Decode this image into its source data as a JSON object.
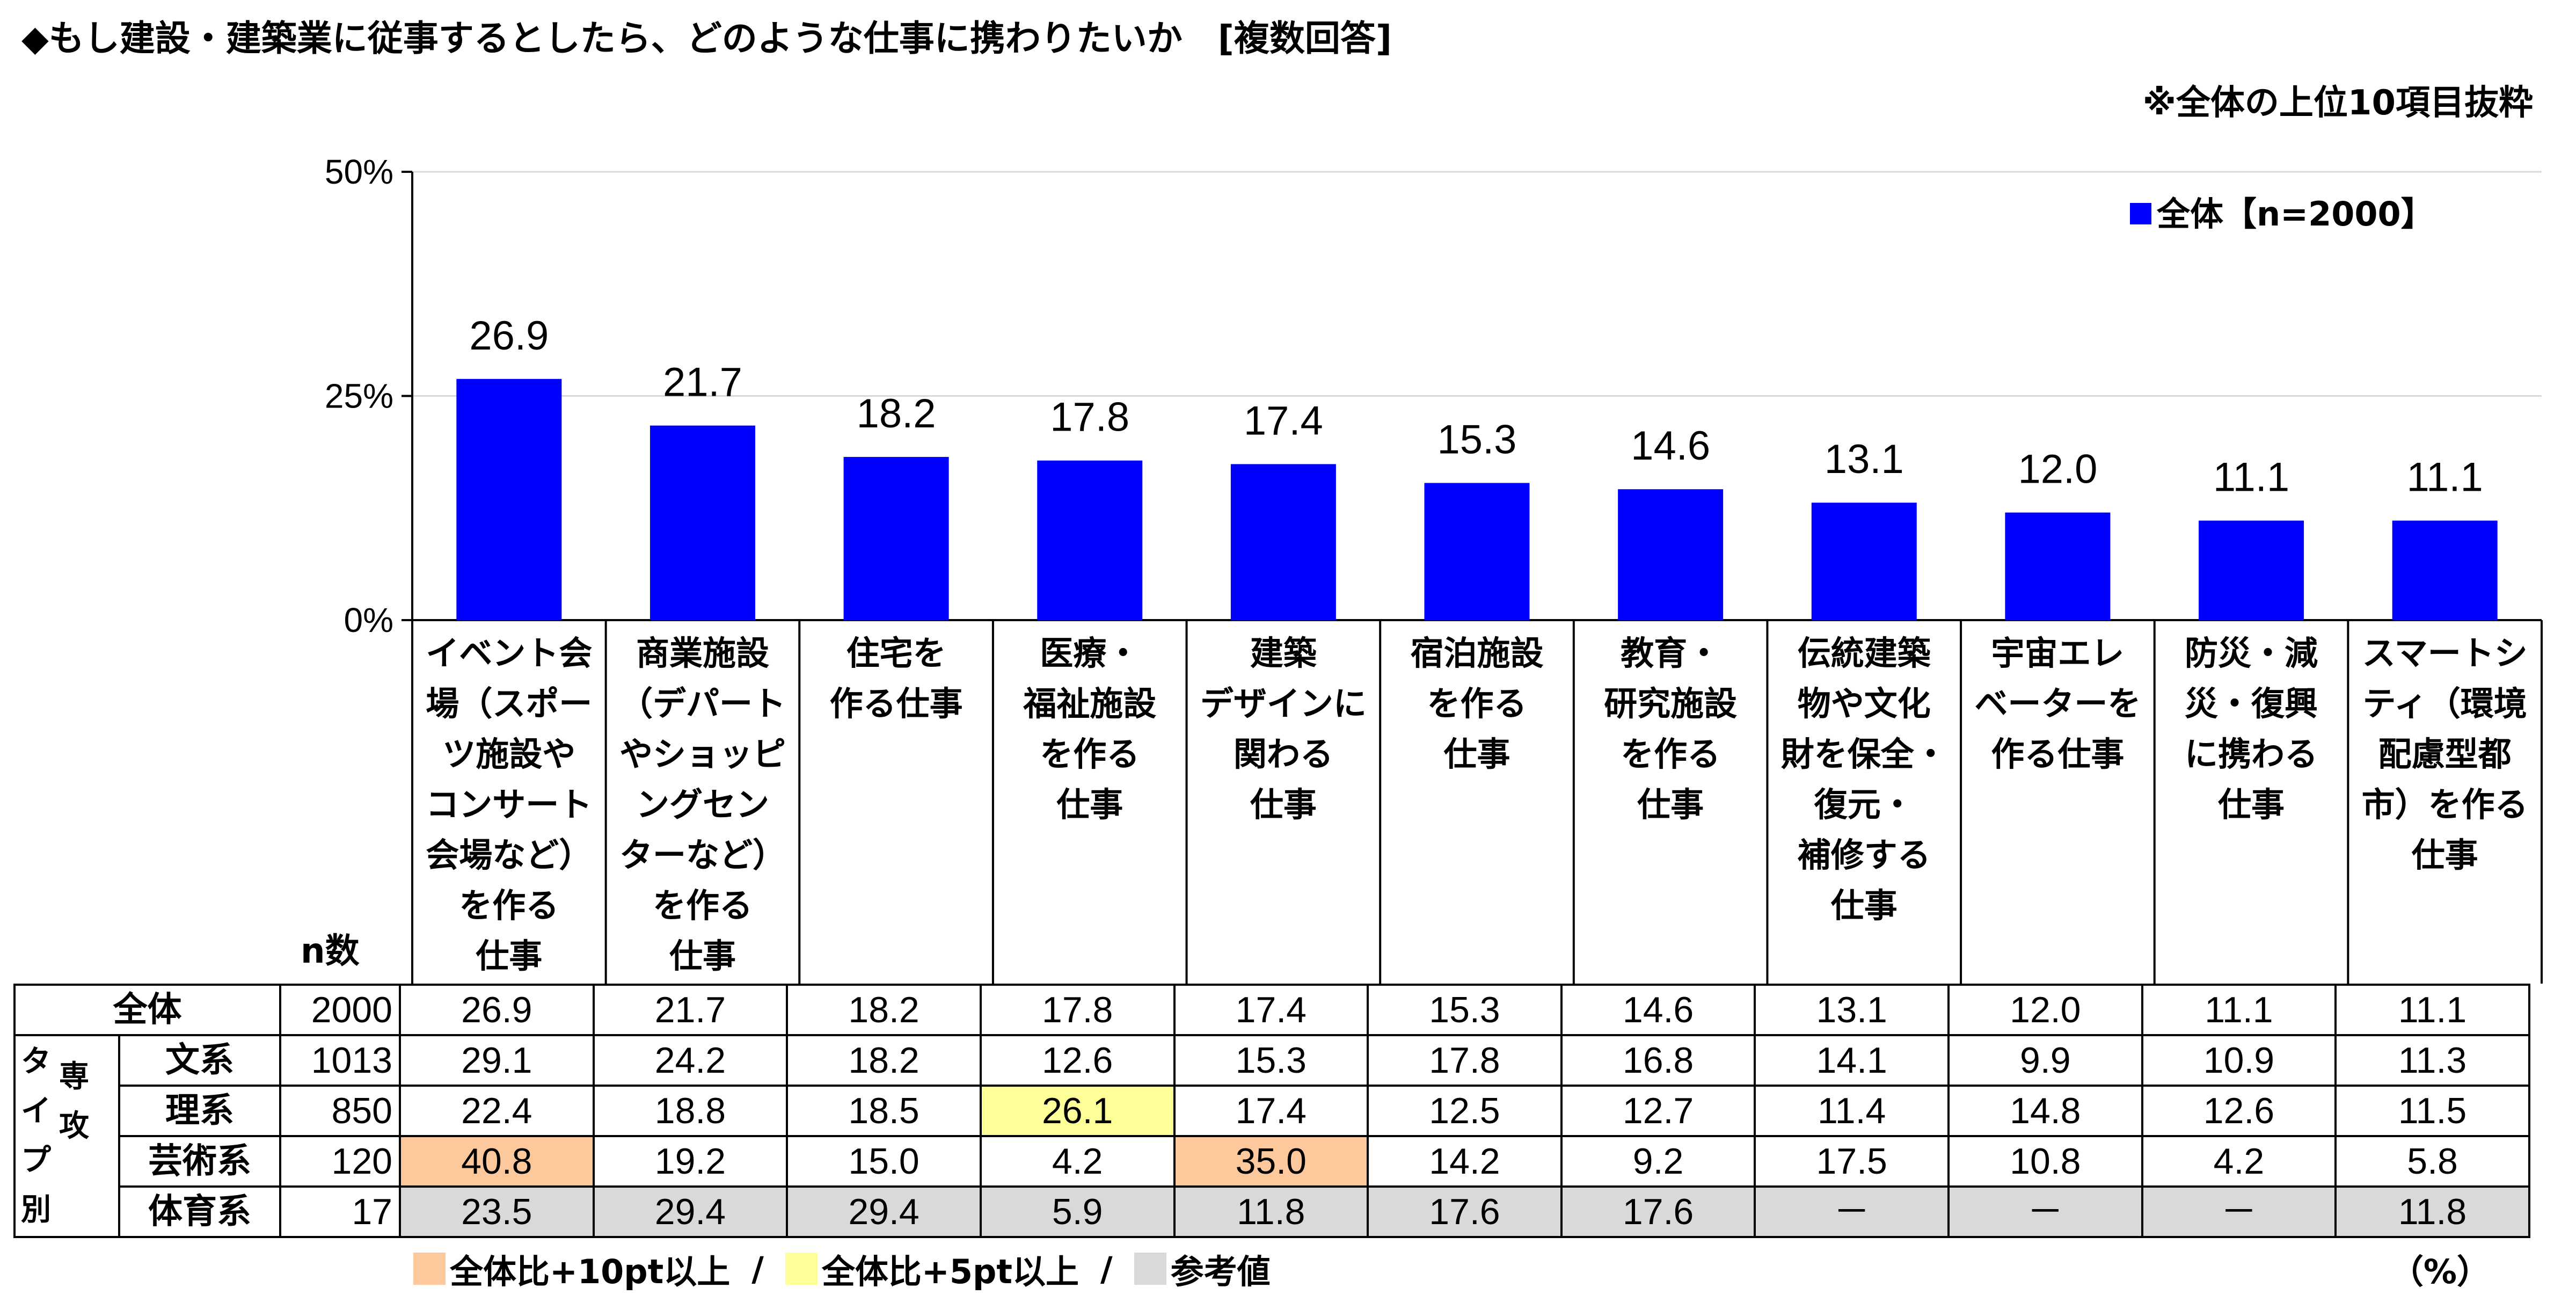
{
  "title": "◆もし建設・建築業に従事するとしたら、どのような仕事に携わりたいか　[複数回答]",
  "note": "※全体の上位10項目抜粋",
  "chart_data": {
    "type": "bar",
    "title": "◆もし建設・建築業に従事するとしたら、どのような仕事に携わりたいか　[複数回答]",
    "categories": [
      "イベント会場（スポーツ施設やコンサート会場など）を作る仕事",
      "商業施設（デパートやショッピングセンターなど）を作る仕事",
      "住宅を作る仕事",
      "医療・福祉施設を作る仕事",
      "建築デザインに関わる仕事",
      "宿泊施設を作る仕事",
      "教育・研究施設を作る仕事",
      "伝統建築物や文化財を保全・復元・補修する仕事",
      "宇宙エレベーターを作る仕事",
      "防災・減災・復興に携わる仕事",
      "スマートシティ（環境配慮型都市）を作る仕事"
    ],
    "category_lines": [
      "イベント会\n場（スポー\nツ施設や\nコンサート\n会場など）\nを作る\n仕事",
      "商業施設\n（デパート\nやショッピ\nングセン\nターなど）\nを作る\n仕事",
      "住宅を\n作る仕事",
      "医療・\n福祉施設\nを作る\n仕事",
      "建築\nデザインに\n関わる\n仕事",
      "宿泊施設\nを作る\n仕事",
      "教育・\n研究施設\nを作る\n仕事",
      "伝統建築\n物や文化\n財を保全・\n復元・\n補修する\n仕事",
      "宇宙エレ\nベーターを\n作る仕事",
      "防災・減\n災・復興\nに携わる\n仕事",
      "スマートシ\nティ（環境\n配慮型都\n市）を作る\n仕事"
    ],
    "series": [
      {
        "name": "全体【n=2000】",
        "values": [
          26.9,
          21.7,
          18.2,
          17.8,
          17.4,
          15.3,
          14.6,
          13.1,
          12.0,
          11.1,
          11.1
        ]
      }
    ],
    "value_labels": [
      "26.9",
      "21.7",
      "18.2",
      "17.8",
      "17.4",
      "15.3",
      "14.6",
      "13.1",
      "12.0",
      "11.1",
      "11.1"
    ],
    "ylim": [
      0,
      50
    ],
    "yticks": [
      "0%",
      "25%",
      "50%"
    ],
    "ytick_values": [
      0,
      25,
      50
    ],
    "bar_color": "#0000ff",
    "grid": true,
    "legend_position": "top-right",
    "legend_label": "全体【n=2000】"
  },
  "table": {
    "n_header": "n数",
    "group_label": "タ\nイ\nプ\n別",
    "group_label2": "専\n攻",
    "rows": [
      {
        "label": "全体",
        "n": "2000",
        "cells": [
          "26.9",
          "21.7",
          "18.2",
          "17.8",
          "17.4",
          "15.3",
          "14.6",
          "13.1",
          "12.0",
          "11.1",
          "11.1"
        ],
        "hl": [
          "",
          "",
          "",
          "",
          "",
          "",
          "",
          "",
          "",
          "",
          ""
        ]
      },
      {
        "label": "文系",
        "n": "1013",
        "cells": [
          "29.1",
          "24.2",
          "18.2",
          "12.6",
          "15.3",
          "17.8",
          "16.8",
          "14.1",
          "9.9",
          "10.9",
          "11.3"
        ],
        "hl": [
          "",
          "",
          "",
          "",
          "",
          "",
          "",
          "",
          "",
          "",
          ""
        ]
      },
      {
        "label": "理系",
        "n": "850",
        "cells": [
          "22.4",
          "18.8",
          "18.5",
          "26.1",
          "17.4",
          "12.5",
          "12.7",
          "11.4",
          "14.8",
          "12.6",
          "11.5"
        ],
        "hl": [
          "",
          "",
          "",
          "yellow",
          "",
          "",
          "",
          "",
          "",
          "",
          ""
        ]
      },
      {
        "label": "芸術系",
        "n": "120",
        "cells": [
          "40.8",
          "19.2",
          "15.0",
          "4.2",
          "35.0",
          "14.2",
          "9.2",
          "17.5",
          "10.8",
          "4.2",
          "5.8"
        ],
        "hl": [
          "orange",
          "",
          "",
          "",
          "orange",
          "",
          "",
          "",
          "",
          "",
          ""
        ]
      },
      {
        "label": "体育系",
        "n": "17",
        "cells": [
          "23.5",
          "29.4",
          "29.4",
          "5.9",
          "11.8",
          "17.6",
          "17.6",
          "－",
          "－",
          "－",
          "11.8"
        ],
        "hl": [
          "gray",
          "gray",
          "gray",
          "gray",
          "gray",
          "gray",
          "gray",
          "gray",
          "gray",
          "gray",
          "gray"
        ]
      }
    ]
  },
  "legend2": {
    "orange_label": "全体比+10pt以上",
    "yellow_label": "全体比+5pt以上",
    "gray_label": "参考値",
    "separator": "/",
    "orange_color": "#fdc89b",
    "yellow_color": "#ffff99",
    "gray_color": "#d9d9d9"
  },
  "unit": "（%）"
}
